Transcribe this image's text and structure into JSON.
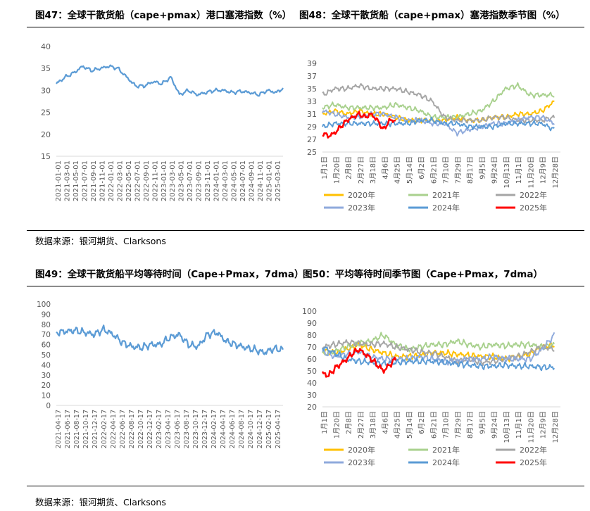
{
  "section1": {
    "left_title": "图47：全球干散货船（cape+pmax）港口塞港指数（%）",
    "right_title": "图48：全球干散货船（cape+pmax）塞港指数季节图（%）",
    "source": "数据来源：银河期货、Clarksons"
  },
  "section2": {
    "left_title": "图49：全球干散货船平均等待时间（Cape+Pmax，7dma）",
    "right_title": "图50：平均等待时间季节图（Cape+Pmax，7dma）",
    "source": "数据来源：银河期货、Clarksons"
  },
  "colors": {
    "main": "#5b9bd5",
    "y2020": "#ffc000",
    "y2021": "#a9d18e",
    "y2022": "#a5a5a5",
    "y2023": "#8faadc",
    "y2024": "#5b9bd5",
    "y2025": "#ff0000"
  },
  "chart_data": [
    {
      "id": "c47",
      "type": "line",
      "title": "全球干散货船（cape+pmax）港口塞港指数（%）",
      "ylim": [
        15,
        40
      ],
      "yticks": [
        15,
        20,
        25,
        30,
        35,
        40
      ],
      "x_tick_labels": [
        "2021-01-01",
        "2021-03-01",
        "2021-05-01",
        "2021-07-01",
        "2021-09-01",
        "2021-11-01",
        "2022-01-01",
        "2022-03-01",
        "2022-05-01",
        "2022-07-01",
        "2022-09-01",
        "2022-11-01",
        "2023-01-01",
        "2023-03-01",
        "2023-05-01",
        "2023-07-01",
        "2023-09-01",
        "2023-11-01",
        "2024-01-01",
        "2024-03-01",
        "2024-05-01",
        "2024-07-01",
        "2024-09-01",
        "2024-11-01",
        "2025-01-01",
        "2025-03-01"
      ],
      "series": [
        {
          "name": "塞港指数",
          "color_key": "main",
          "x": [
            0,
            2,
            4,
            6,
            8,
            10,
            12,
            14,
            16,
            18,
            20,
            22,
            24,
            26,
            28,
            30,
            32,
            34,
            36,
            38,
            40,
            42,
            44,
            46,
            48,
            50,
            51.5
          ],
          "values": [
            31.5,
            33,
            34,
            35.5,
            34.5,
            35,
            35.5,
            35,
            33,
            31,
            31,
            32,
            31.5,
            33,
            29,
            30,
            29,
            29.5,
            30,
            30,
            29.5,
            29.8,
            29.5,
            29,
            30,
            29.5,
            30.5
          ]
        }
      ]
    },
    {
      "id": "c48",
      "type": "line",
      "title": "全球干散货船（cape+pmax）塞港指数季节图（%）",
      "ylim": [
        25,
        39
      ],
      "yticks": [
        25,
        27,
        29,
        31,
        33,
        35,
        37,
        39
      ],
      "x_tick_labels": [
        "1月1日",
        "1月20日",
        "2月8日",
        "2月27日",
        "3月18日",
        "4月6日",
        "4月25日",
        "5月14日",
        "6月2日",
        "6月21日",
        "7月10日",
        "7月29日",
        "8月17日",
        "9月5日",
        "9月24日",
        "10月13日",
        "11月1日",
        "11月20日",
        "12月9日",
        "12月28日"
      ],
      "series": [
        {
          "name": "2020年",
          "color_key": "y2020",
          "x": [
            0,
            1,
            2,
            3,
            4,
            5,
            6,
            7,
            8,
            9,
            10,
            11,
            12,
            13,
            14,
            15,
            16,
            17,
            18,
            19
          ],
          "values": [
            31,
            31.5,
            31,
            31.5,
            31,
            31,
            30.5,
            30,
            30,
            30,
            30,
            30.5,
            30,
            30,
            30.5,
            30.5,
            31,
            31,
            31.5,
            33
          ]
        },
        {
          "name": "2021年",
          "color_key": "y2021",
          "x": [
            0,
            1,
            2,
            3,
            4,
            5,
            6,
            7,
            8,
            9,
            10,
            11,
            12,
            13,
            14,
            15,
            16,
            17,
            18,
            19
          ],
          "values": [
            32,
            32.5,
            32,
            32,
            32,
            32,
            32.5,
            32,
            31.5,
            30.5,
            30.5,
            30.5,
            31,
            31.5,
            33,
            35,
            35.5,
            34,
            34,
            34
          ]
        },
        {
          "name": "2022年",
          "color_key": "y2022",
          "x": [
            0,
            1,
            2,
            3,
            4,
            5,
            6,
            7,
            8,
            9,
            10,
            11,
            12,
            13,
            14,
            15,
            16,
            17,
            18,
            19
          ],
          "values": [
            34,
            35,
            35,
            35.5,
            35,
            35,
            35,
            34.5,
            34,
            33,
            30.5,
            30,
            30,
            30,
            30.5,
            30.5,
            30,
            30,
            30,
            30.5
          ]
        },
        {
          "name": "2023年",
          "color_key": "y2023",
          "x": [
            0,
            1,
            2,
            3,
            4,
            5,
            6,
            7,
            8,
            9,
            10,
            11,
            12,
            13,
            14,
            15,
            16,
            17,
            18,
            19
          ],
          "values": [
            31.5,
            31,
            30.5,
            30.5,
            31,
            31,
            30.5,
            30,
            30,
            29.5,
            29.5,
            28,
            28.5,
            29,
            29.5,
            29.5,
            30,
            30.5,
            30.5,
            29.5
          ]
        },
        {
          "name": "2024年",
          "color_key": "y2024",
          "x": [
            0,
            1,
            2,
            3,
            4,
            5,
            6,
            7,
            8,
            9,
            10,
            11,
            12,
            13,
            14,
            15,
            16,
            17,
            18,
            19
          ],
          "values": [
            29,
            29.5,
            29.5,
            29.5,
            29.5,
            29.5,
            29.5,
            29.5,
            30,
            30,
            29.5,
            29.5,
            29,
            29,
            29,
            29.5,
            29.5,
            29.5,
            29.5,
            28.5
          ]
        },
        {
          "name": "2025年",
          "color_key": "y2025",
          "x": [
            0,
            0.5,
            1,
            1.5,
            2,
            2.5,
            3,
            3.5,
            4,
            4.5,
            5,
            5.5,
            6
          ],
          "values": [
            28,
            27.5,
            28,
            29,
            30,
            30.5,
            31,
            30.5,
            31,
            30,
            28.5,
            30,
            30
          ]
        }
      ]
    },
    {
      "id": "c49",
      "type": "line",
      "title": "全球干散货船平均等待时间（Cape+Pmax，7dma）",
      "ylim": [
        0,
        100
      ],
      "yticks": [
        0,
        10,
        20,
        30,
        40,
        50,
        60,
        70,
        80,
        90,
        100
      ],
      "x_tick_labels": [
        "2021-04-17",
        "2021-06-17",
        "2021-08-17",
        "2021-10-17",
        "2021-12-17",
        "2022-02-17",
        "2022-04-17",
        "2022-06-17",
        "2022-08-17",
        "2022-10-17",
        "2022-12-17",
        "2023-02-17",
        "2023-04-17",
        "2023-06-17",
        "2023-08-17",
        "2023-10-17",
        "2023-12-17",
        "2024-02-17",
        "2024-04-17",
        "2024-06-17",
        "2024-08-17",
        "2024-10-17",
        "2024-12-17",
        "2025-02-17",
        "2025-04-17"
      ],
      "series": [
        {
          "name": "平均等待时间",
          "color_key": "main",
          "x": [
            0,
            1,
            2,
            3,
            4,
            5,
            6,
            7,
            8,
            9,
            10,
            11,
            12,
            13,
            14,
            15,
            16,
            17,
            18,
            19,
            20,
            21,
            22,
            23,
            24
          ],
          "values": [
            72,
            73,
            74,
            72,
            70,
            75,
            70,
            62,
            58,
            57,
            60,
            60,
            67,
            70,
            60,
            58,
            70,
            72,
            63,
            60,
            57,
            55,
            52,
            56,
            55
          ]
        }
      ]
    },
    {
      "id": "c50",
      "type": "line",
      "title": "平均等待时间季节图（Cape+Pmax，7dma）",
      "ylim": [
        20,
        100
      ],
      "yticks": [
        20,
        30,
        40,
        50,
        60,
        70,
        80,
        90,
        100
      ],
      "x_tick_labels": [
        "1月1日",
        "1月20日",
        "2月8日",
        "2月27日",
        "3月18日",
        "4月6日",
        "4月25日",
        "5月14日",
        "6月2日",
        "6月21日",
        "7月10日",
        "7月29日",
        "8月17日",
        "9月5日",
        "9月24日",
        "10月13日",
        "11月1日",
        "11月20日",
        "12月9日",
        "12月28日"
      ],
      "series": [
        {
          "name": "2020年",
          "color_key": "y2020",
          "x": [
            0,
            1,
            2,
            3,
            4,
            5,
            6,
            7,
            8,
            9,
            10,
            11,
            12,
            13,
            14,
            15,
            16,
            17,
            18,
            19
          ],
          "values": [
            67,
            65,
            68,
            72,
            68,
            65,
            62,
            62,
            63,
            65,
            65,
            64,
            63,
            62,
            62,
            60,
            62,
            64,
            70,
            72
          ]
        },
        {
          "name": "2021年",
          "color_key": "y2021",
          "x": [
            0,
            1,
            2,
            3,
            4,
            5,
            6,
            7,
            8,
            9,
            10,
            11,
            12,
            13,
            14,
            15,
            16,
            17,
            18,
            19
          ],
          "values": [
            64,
            66,
            70,
            73,
            75,
            80,
            72,
            68,
            70,
            72,
            72,
            75,
            72,
            70,
            72,
            71,
            72,
            72,
            70,
            72
          ]
        },
        {
          "name": "2022年",
          "color_key": "y2022",
          "x": [
            0,
            1,
            2,
            3,
            4,
            5,
            6,
            7,
            8,
            9,
            10,
            11,
            12,
            13,
            14,
            15,
            16,
            17,
            18,
            19
          ],
          "values": [
            70,
            72,
            74,
            73,
            72,
            73,
            70,
            68,
            66,
            65,
            62,
            58,
            60,
            57,
            58,
            60,
            62,
            66,
            70,
            68
          ]
        },
        {
          "name": "2023年",
          "color_key": "y2023",
          "x": [
            0,
            1,
            2,
            3,
            4,
            5,
            6,
            7,
            8,
            9,
            10,
            11,
            12,
            13,
            14,
            15,
            16,
            17,
            18,
            19
          ],
          "values": [
            66,
            62,
            64,
            66,
            62,
            60,
            60,
            60,
            62,
            60,
            58,
            58,
            60,
            60,
            62,
            60,
            60,
            60,
            68,
            80
          ]
        },
        {
          "name": "2024年",
          "color_key": "y2024",
          "x": [
            0,
            1,
            2,
            3,
            4,
            5,
            6,
            7,
            8,
            9,
            10,
            11,
            12,
            13,
            14,
            15,
            16,
            17,
            18,
            19
          ],
          "values": [
            70,
            65,
            60,
            58,
            57,
            56,
            57,
            58,
            58,
            58,
            57,
            56,
            55,
            54,
            54,
            55,
            54,
            54,
            53,
            53
          ]
        },
        {
          "name": "2025年",
          "color_key": "y2025",
          "x": [
            0,
            0.5,
            1,
            1.5,
            2,
            2.5,
            3,
            3.5,
            4,
            4.5,
            5,
            5.5,
            6
          ],
          "values": [
            48,
            46,
            52,
            56,
            60,
            65,
            68,
            64,
            60,
            55,
            50,
            55,
            60
          ]
        }
      ]
    }
  ]
}
